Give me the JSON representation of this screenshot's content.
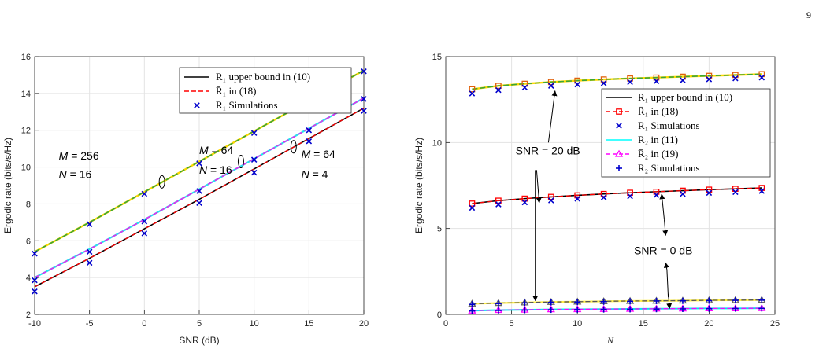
{
  "page_number": "9",
  "chart_data": [
    {
      "type": "line",
      "xlabel": "SNR (dB)",
      "ylabel": "Ergodic rate (bits/s/Hz)",
      "xlim": [
        -10,
        20
      ],
      "ylim": [
        2,
        16
      ],
      "xticks": [
        "-10",
        "-5",
        "0",
        "5",
        "10",
        "15",
        "20"
      ],
      "yticks": [
        "2",
        "4",
        "6",
        "8",
        "10",
        "12",
        "14",
        "16"
      ],
      "grid": true,
      "legend_position": "top-right",
      "legend": [
        {
          "label": "R₁ upper bound in (10)",
          "style": "solid",
          "color": "#000000"
        },
        {
          "label": "R̄₁ in (18)",
          "style": "dashed",
          "color": "#ff0000"
        },
        {
          "label": "R₁ Simulations",
          "style": "x-marker",
          "color": "#0000cc"
        }
      ],
      "x": [
        -10,
        -5,
        0,
        5,
        10,
        15,
        20
      ],
      "series": [
        {
          "case": "M=256,N=16",
          "bound": [
            5.4,
            7.0,
            8.65,
            10.3,
            11.95,
            13.6,
            15.25
          ],
          "approx": [
            5.4,
            7.0,
            8.65,
            10.3,
            11.95,
            13.6,
            15.25
          ],
          "sim": [
            5.3,
            6.9,
            8.55,
            10.2,
            11.85,
            13.55,
            15.2
          ]
        },
        {
          "case": "M=64,N=16",
          "bound": [
            4.0,
            5.55,
            7.15,
            8.8,
            10.45,
            12.1,
            13.75
          ],
          "approx": [
            4.0,
            5.55,
            7.15,
            8.8,
            10.45,
            12.1,
            13.75
          ],
          "sim": [
            3.85,
            5.4,
            7.05,
            8.7,
            10.4,
            12.0,
            13.7
          ]
        },
        {
          "case": "M=64,N=4",
          "bound": [
            3.5,
            5.05,
            6.65,
            8.25,
            9.9,
            11.55,
            13.2
          ],
          "approx": [
            3.5,
            5.05,
            6.65,
            8.25,
            9.9,
            11.55,
            13.2
          ],
          "sim": [
            3.25,
            4.8,
            6.4,
            8.05,
            9.7,
            11.4,
            13.05
          ]
        }
      ],
      "annotations": [
        {
          "line1": "M = 256",
          "line2": "N = 16",
          "x": -7.8,
          "y1": 10.4,
          "y2": 9.4,
          "ellipse_x": 1.6,
          "ellipse_y": 9.2
        },
        {
          "line1": "M = 64",
          "line2": "N = 16",
          "x": 5.0,
          "y1": 10.7,
          "y2": 9.65,
          "ellipse_x": 8.8,
          "ellipse_y": 10.3
        },
        {
          "line1": "M = 64",
          "line2": "N = 4",
          "x": 14.3,
          "y1": 10.5,
          "y2": 9.4,
          "ellipse_x": 13.6,
          "ellipse_y": 11.1
        }
      ]
    },
    {
      "type": "line",
      "xlabel": "N",
      "ylabel": "Ergodic rate (bits/s/Hz)",
      "xlim": [
        0,
        25
      ],
      "ylim": [
        0,
        15
      ],
      "xticks": [
        "0",
        "5",
        "10",
        "15",
        "20",
        "25"
      ],
      "yticks": [
        "0",
        "5",
        "10",
        "15"
      ],
      "grid": true,
      "legend_position": "right",
      "legend": [
        {
          "label": "R₁ upper bound in (10)",
          "style": "solid",
          "color": "#000000"
        },
        {
          "label": "R̄₁ in (18)",
          "style": "dashed-square",
          "color": "#ff0000"
        },
        {
          "label": "R₁ Simulations",
          "style": "x-marker",
          "color": "#0000cc"
        },
        {
          "label": "R₂ in (11)",
          "style": "solid",
          "color": "#00ffff"
        },
        {
          "label": "R̄₂ in (19)",
          "style": "dashed-triangle",
          "color": "#ff00ff"
        },
        {
          "label": "R₂ Simulations",
          "style": "plus-marker",
          "color": "#0000cc"
        }
      ],
      "x": [
        2,
        4,
        6,
        8,
        10,
        12,
        14,
        16,
        18,
        20,
        22,
        24
      ],
      "series": [
        {
          "case": "R1, SNR=20dB",
          "bound": [
            13.1,
            13.3,
            13.42,
            13.52,
            13.6,
            13.67,
            13.73,
            13.78,
            13.83,
            13.88,
            13.93,
            13.98
          ],
          "sim": [
            12.85,
            13.05,
            13.2,
            13.3,
            13.38,
            13.45,
            13.52,
            13.57,
            13.62,
            13.68,
            13.73,
            13.78
          ]
        },
        {
          "case": "R1, SNR=0dB",
          "bound": [
            6.45,
            6.62,
            6.74,
            6.84,
            6.93,
            7.01,
            7.08,
            7.14,
            7.2,
            7.26,
            7.31,
            7.36
          ],
          "sim": [
            6.2,
            6.4,
            6.52,
            6.63,
            6.73,
            6.81,
            6.88,
            6.95,
            7.01,
            7.07,
            7.12,
            7.18
          ]
        },
        {
          "case": "R2, SNR=20dB",
          "bound": [
            0.62,
            0.66,
            0.69,
            0.72,
            0.74,
            0.76,
            0.78,
            0.79,
            0.8,
            0.82,
            0.83,
            0.84
          ],
          "sim": [
            0.58,
            0.63,
            0.67,
            0.7,
            0.72,
            0.74,
            0.76,
            0.78,
            0.79,
            0.8,
            0.82,
            0.83
          ]
        },
        {
          "case": "R2, SNR=0dB",
          "bound": [
            0.22,
            0.25,
            0.27,
            0.29,
            0.3,
            0.31,
            0.32,
            0.33,
            0.34,
            0.35,
            0.35,
            0.36
          ],
          "sim": [
            0.2,
            0.23,
            0.25,
            0.27,
            0.28,
            0.29,
            0.3,
            0.31,
            0.32,
            0.33,
            0.34,
            0.35
          ]
        }
      ],
      "annotations": [
        {
          "text": "SNR = 20 dB",
          "x": 5.3,
          "y": 9.3
        },
        {
          "text": "SNR = 0 dB",
          "x": 14.3,
          "y": 3.5
        }
      ]
    }
  ]
}
